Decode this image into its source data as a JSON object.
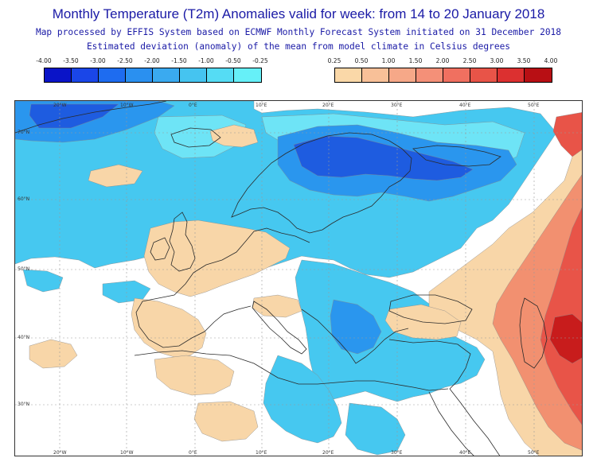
{
  "header": {
    "title": "Monthly Temperature (T2m) Anomalies valid for week: from 14 to 20 January 2018",
    "subtitle_1": "Map processed by EFFIS System based on ECMWF Monthly Forecast System initiated on 31 December 2018",
    "subtitle_2": "Estimated deviation (anomaly) of the mean from model climate in Celsius degrees"
  },
  "legend_cold": {
    "labels": [
      "-4.00",
      "-3.50",
      "-3.00",
      "-2.50",
      "-2.00",
      "-1.50",
      "-1.00",
      "-0.50",
      "-0.25"
    ],
    "colors": [
      "#0a14c8",
      "#1a46e8",
      "#1e6cf0",
      "#2a90f0",
      "#3aaaf0",
      "#45c4f0",
      "#55dcf4",
      "#66f0f8"
    ]
  },
  "legend_warm": {
    "labels": [
      "0.25",
      "0.50",
      "1.00",
      "1.50",
      "2.00",
      "2.50",
      "3.00",
      "3.50",
      "4.00"
    ],
    "colors": [
      "#fad8a8",
      "#f8c098",
      "#f6a888",
      "#f49078",
      "#f07060",
      "#e85448",
      "#dc3030",
      "#b80f14"
    ]
  },
  "map": {
    "bottom_axis": [
      "20°W",
      "10°W",
      "0°E",
      "10°E",
      "20°E",
      "30°E",
      "40°E",
      "50°E"
    ],
    "top_axis": [
      "20°W",
      "10°W",
      "0°E",
      "10°E",
      "20°E",
      "30°E",
      "40°E",
      "50°E"
    ],
    "lat_labels": [
      "70°N",
      "60°N",
      "50°N",
      "40°N",
      "30°N"
    ],
    "colors": {
      "sea_background": "#ffffff",
      "cold_light": "#46c8f0",
      "cold_lighter": "#6ee4f6",
      "cold_mid": "#2a96ee",
      "cold_deep": "#1e5ce0",
      "warm_light": "#f8d6a8",
      "warm_mid": "#f29070",
      "warm_strong": "#e85448",
      "warm_deep": "#c81c1c",
      "coastline": "#2a2a2a",
      "graticule": "#999999"
    }
  }
}
